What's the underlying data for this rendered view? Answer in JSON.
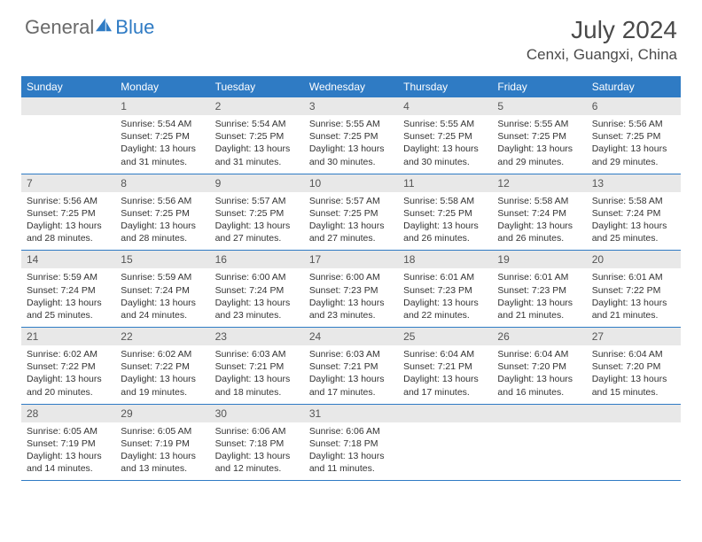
{
  "brand": {
    "part1": "General",
    "part2": "Blue"
  },
  "title": "July 2024",
  "location": "Cenxi, Guangxi, China",
  "colors": {
    "header_bg": "#2f7bc4",
    "header_fg": "#ffffff",
    "daynum_bg": "#e8e8e8",
    "border": "#2f7bc4",
    "text": "#333333",
    "brand_gray": "#6a6a6a",
    "brand_blue": "#2f7bc4"
  },
  "weekdays": [
    "Sunday",
    "Monday",
    "Tuesday",
    "Wednesday",
    "Thursday",
    "Friday",
    "Saturday"
  ],
  "weeks": [
    [
      null,
      {
        "n": "1",
        "sr": "5:54 AM",
        "ss": "7:25 PM",
        "dl": "13 hours and 31 minutes."
      },
      {
        "n": "2",
        "sr": "5:54 AM",
        "ss": "7:25 PM",
        "dl": "13 hours and 31 minutes."
      },
      {
        "n": "3",
        "sr": "5:55 AM",
        "ss": "7:25 PM",
        "dl": "13 hours and 30 minutes."
      },
      {
        "n": "4",
        "sr": "5:55 AM",
        "ss": "7:25 PM",
        "dl": "13 hours and 30 minutes."
      },
      {
        "n": "5",
        "sr": "5:55 AM",
        "ss": "7:25 PM",
        "dl": "13 hours and 29 minutes."
      },
      {
        "n": "6",
        "sr": "5:56 AM",
        "ss": "7:25 PM",
        "dl": "13 hours and 29 minutes."
      }
    ],
    [
      {
        "n": "7",
        "sr": "5:56 AM",
        "ss": "7:25 PM",
        "dl": "13 hours and 28 minutes."
      },
      {
        "n": "8",
        "sr": "5:56 AM",
        "ss": "7:25 PM",
        "dl": "13 hours and 28 minutes."
      },
      {
        "n": "9",
        "sr": "5:57 AM",
        "ss": "7:25 PM",
        "dl": "13 hours and 27 minutes."
      },
      {
        "n": "10",
        "sr": "5:57 AM",
        "ss": "7:25 PM",
        "dl": "13 hours and 27 minutes."
      },
      {
        "n": "11",
        "sr": "5:58 AM",
        "ss": "7:25 PM",
        "dl": "13 hours and 26 minutes."
      },
      {
        "n": "12",
        "sr": "5:58 AM",
        "ss": "7:24 PM",
        "dl": "13 hours and 26 minutes."
      },
      {
        "n": "13",
        "sr": "5:58 AM",
        "ss": "7:24 PM",
        "dl": "13 hours and 25 minutes."
      }
    ],
    [
      {
        "n": "14",
        "sr": "5:59 AM",
        "ss": "7:24 PM",
        "dl": "13 hours and 25 minutes."
      },
      {
        "n": "15",
        "sr": "5:59 AM",
        "ss": "7:24 PM",
        "dl": "13 hours and 24 minutes."
      },
      {
        "n": "16",
        "sr": "6:00 AM",
        "ss": "7:24 PM",
        "dl": "13 hours and 23 minutes."
      },
      {
        "n": "17",
        "sr": "6:00 AM",
        "ss": "7:23 PM",
        "dl": "13 hours and 23 minutes."
      },
      {
        "n": "18",
        "sr": "6:01 AM",
        "ss": "7:23 PM",
        "dl": "13 hours and 22 minutes."
      },
      {
        "n": "19",
        "sr": "6:01 AM",
        "ss": "7:23 PM",
        "dl": "13 hours and 21 minutes."
      },
      {
        "n": "20",
        "sr": "6:01 AM",
        "ss": "7:22 PM",
        "dl": "13 hours and 21 minutes."
      }
    ],
    [
      {
        "n": "21",
        "sr": "6:02 AM",
        "ss": "7:22 PM",
        "dl": "13 hours and 20 minutes."
      },
      {
        "n": "22",
        "sr": "6:02 AM",
        "ss": "7:22 PM",
        "dl": "13 hours and 19 minutes."
      },
      {
        "n": "23",
        "sr": "6:03 AM",
        "ss": "7:21 PM",
        "dl": "13 hours and 18 minutes."
      },
      {
        "n": "24",
        "sr": "6:03 AM",
        "ss": "7:21 PM",
        "dl": "13 hours and 17 minutes."
      },
      {
        "n": "25",
        "sr": "6:04 AM",
        "ss": "7:21 PM",
        "dl": "13 hours and 17 minutes."
      },
      {
        "n": "26",
        "sr": "6:04 AM",
        "ss": "7:20 PM",
        "dl": "13 hours and 16 minutes."
      },
      {
        "n": "27",
        "sr": "6:04 AM",
        "ss": "7:20 PM",
        "dl": "13 hours and 15 minutes."
      }
    ],
    [
      {
        "n": "28",
        "sr": "6:05 AM",
        "ss": "7:19 PM",
        "dl": "13 hours and 14 minutes."
      },
      {
        "n": "29",
        "sr": "6:05 AM",
        "ss": "7:19 PM",
        "dl": "13 hours and 13 minutes."
      },
      {
        "n": "30",
        "sr": "6:06 AM",
        "ss": "7:18 PM",
        "dl": "13 hours and 12 minutes."
      },
      {
        "n": "31",
        "sr": "6:06 AM",
        "ss": "7:18 PM",
        "dl": "13 hours and 11 minutes."
      },
      null,
      null,
      null
    ]
  ],
  "labels": {
    "sunrise": "Sunrise:",
    "sunset": "Sunset:",
    "daylight": "Daylight:"
  }
}
